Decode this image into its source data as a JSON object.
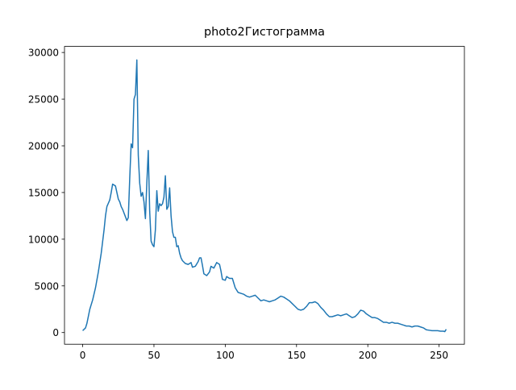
{
  "chart_data": {
    "type": "line",
    "title": "photo2Гистограмма",
    "x": [
      0,
      2,
      3,
      5,
      7,
      9,
      11,
      12,
      13,
      15,
      16,
      17,
      19,
      20,
      21,
      22,
      23,
      24,
      25,
      26,
      27,
      28,
      29,
      30,
      31,
      32,
      33,
      34,
      35,
      36,
      37,
      38,
      39,
      40,
      41,
      42,
      43,
      44,
      45,
      46,
      47,
      48,
      49,
      50,
      51,
      52,
      53,
      54,
      55,
      56,
      57,
      58,
      59,
      60,
      61,
      62,
      63,
      64,
      65,
      66,
      67,
      68,
      69,
      70,
      72,
      74,
      76,
      77,
      79,
      81,
      82,
      83,
      84,
      85,
      87,
      89,
      90,
      92,
      94,
      96,
      97,
      98,
      100,
      101,
      103,
      105,
      107,
      109,
      111,
      113,
      115,
      117,
      119,
      121,
      123,
      125,
      127,
      129,
      131,
      133,
      135,
      137,
      139,
      141,
      143,
      145,
      147,
      149,
      151,
      153,
      155,
      157,
      159,
      161,
      163,
      165,
      167,
      169,
      171,
      173,
      175,
      177,
      179,
      181,
      183,
      185,
      187,
      189,
      191,
      193,
      195,
      197,
      199,
      201,
      203,
      205,
      207,
      209,
      211,
      213,
      215,
      217,
      219,
      221,
      223,
      225,
      227,
      229,
      231,
      233,
      235,
      237,
      239,
      241,
      243,
      245,
      247,
      249,
      251,
      253,
      254,
      255
    ],
    "series": [
      {
        "color": "#1f77b4",
        "values": [
          200,
          500,
          1000,
          2500,
          3500,
          4800,
          6500,
          7500,
          8500,
          11000,
          12500,
          13500,
          14200,
          15000,
          15900,
          15800,
          15700,
          15000,
          14300,
          14000,
          13500,
          13200,
          12800,
          12400,
          12000,
          12300,
          16500,
          20200,
          19800,
          25000,
          25500,
          29200,
          19000,
          16000,
          14600,
          15000,
          14000,
          12200,
          16000,
          19500,
          13000,
          9800,
          9400,
          9200,
          11000,
          15200,
          13000,
          13800,
          13600,
          13800,
          14500,
          16800,
          13200,
          13500,
          15500,
          12500,
          10800,
          10200,
          10200,
          9200,
          9300,
          8500,
          8000,
          7700,
          7400,
          7300,
          7500,
          7000,
          7100,
          7600,
          8000,
          8000,
          7200,
          6300,
          6100,
          6500,
          7100,
          6900,
          7500,
          7300,
          6600,
          5700,
          5600,
          6000,
          5800,
          5800,
          4800,
          4300,
          4200,
          4100,
          3900,
          3800,
          3900,
          4000,
          3700,
          3400,
          3500,
          3400,
          3300,
          3400,
          3500,
          3700,
          3900,
          3800,
          3600,
          3400,
          3100,
          2800,
          2500,
          2400,
          2500,
          2800,
          3200,
          3200,
          3300,
          3100,
          2700,
          2400,
          2000,
          1700,
          1700,
          1800,
          1900,
          1800,
          1900,
          2000,
          1800,
          1600,
          1700,
          2000,
          2400,
          2300,
          2000,
          1800,
          1600,
          1600,
          1500,
          1300,
          1100,
          1100,
          1000,
          1100,
          1000,
          1000,
          900,
          800,
          700,
          700,
          600,
          700,
          700,
          600,
          500,
          300,
          250,
          200,
          200,
          200,
          150,
          150,
          100,
          350
        ]
      }
    ],
    "xlim": [
      -12.75,
      267.75
    ],
    "xticks": [
      0,
      50,
      100,
      150,
      200,
      250
    ],
    "ylim": [
      -1250,
      30650
    ],
    "yticks": [
      0,
      5000,
      10000,
      15000,
      20000,
      25000,
      30000
    ]
  }
}
